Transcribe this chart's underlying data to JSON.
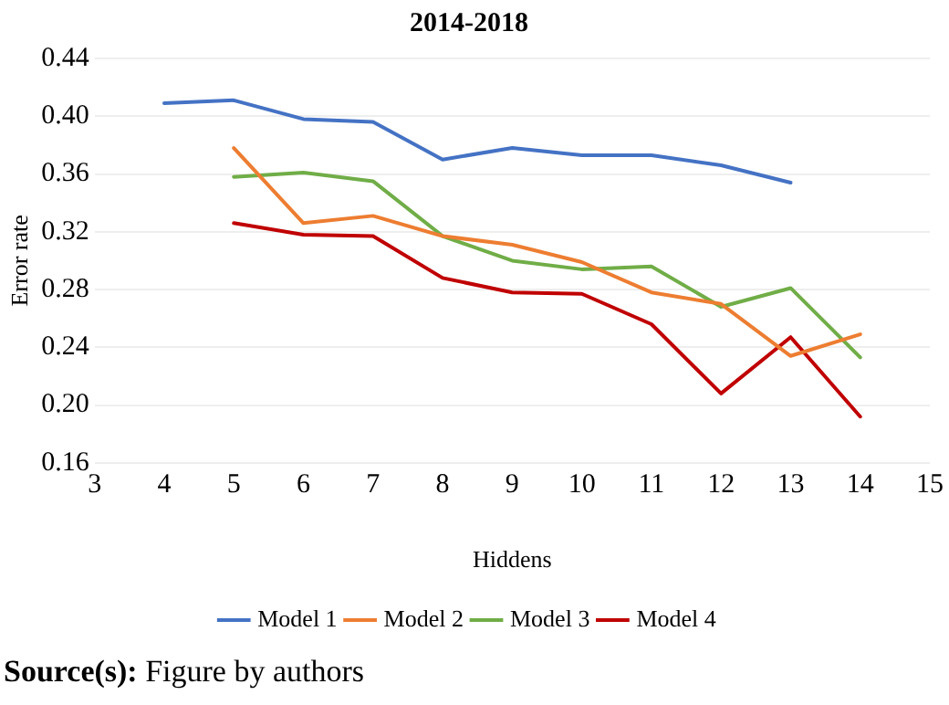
{
  "chart_data": {
    "type": "line",
    "title": "2014-2018",
    "xlabel": "Hiddens",
    "ylabel": "Error rate",
    "xlim": [
      3,
      15
    ],
    "xticks": [
      3,
      4,
      5,
      6,
      7,
      8,
      9,
      10,
      11,
      12,
      13,
      14,
      15
    ],
    "ylim": [
      0.16,
      0.44
    ],
    "yticks": [
      0.16,
      {
        "value": 0.2,
        "label": "0.20"
      },
      0.24,
      0.28,
      0.32,
      0.36,
      {
        "value": 0.4,
        "label": "0.40"
      },
      0.44
    ],
    "grid": "y",
    "legend": "bottom",
    "marker": "none",
    "series": [
      {
        "name": "Model 1",
        "color": "#4472c4",
        "x": [
          4,
          5,
          6,
          7,
          8,
          9,
          10,
          11,
          12,
          13
        ],
        "values": [
          0.409,
          0.411,
          0.398,
          0.396,
          0.37,
          0.378,
          0.373,
          0.373,
          0.366,
          0.354
        ]
      },
      {
        "name": "Model 2",
        "color": "#ed7d31",
        "x": [
          5,
          6,
          7,
          8,
          9,
          10,
          11,
          12,
          13,
          14
        ],
        "values": [
          0.378,
          0.326,
          0.331,
          0.317,
          0.311,
          0.299,
          0.278,
          0.27,
          0.234,
          0.249
        ]
      },
      {
        "name": "Model 3",
        "color": "#70ad47",
        "x": [
          5,
          6,
          7,
          8,
          9,
          10,
          11,
          12,
          13,
          14
        ],
        "values": [
          0.358,
          0.361,
          0.355,
          0.317,
          0.3,
          0.294,
          0.296,
          0.268,
          0.281,
          0.233
        ]
      },
      {
        "name": "Model 4",
        "color": "#c00000",
        "x": [
          5,
          6,
          7,
          8,
          9,
          10,
          11,
          12,
          13,
          14
        ],
        "values": [
          0.326,
          0.318,
          0.317,
          0.288,
          0.278,
          0.277,
          0.256,
          0.208,
          0.247,
          0.192
        ]
      }
    ],
    "annotations": [
      "Source(s): Figure by authors"
    ]
  }
}
